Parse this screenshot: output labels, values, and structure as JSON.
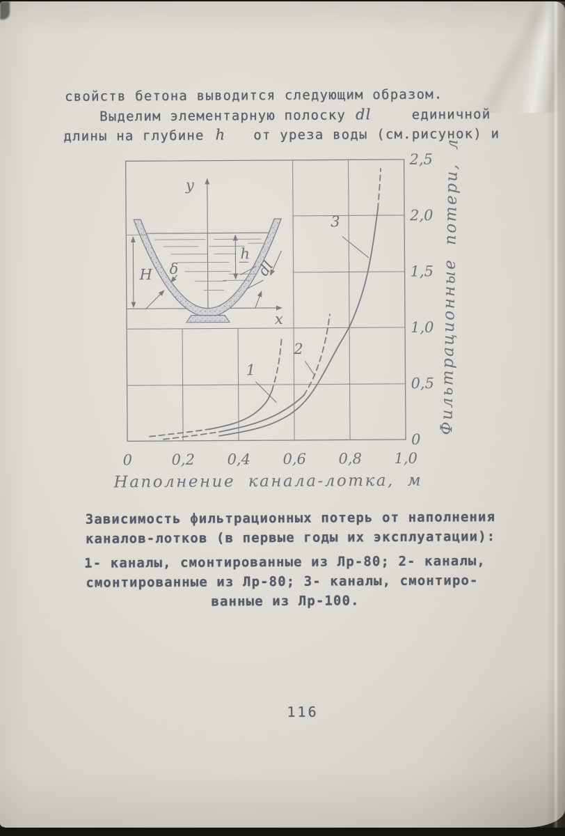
{
  "page_number": "116",
  "body": {
    "line1": "свойств бетона выводится следующим образом.",
    "line2_pre": "Выделим элементарную полоску",
    "line2_math": "dl",
    "line2_post": "единичной",
    "line3_pre": "длины на глубине",
    "line3_math": "h",
    "line3_post": "от уреза воды (см.рисунок) и"
  },
  "caption": {
    "line1": "Зависимость фильтрационных потерь от наполнения",
    "line2": "каналов-лотков (в первые годы их эксплуатации):",
    "line3": "1- каналы, смонтированные из Лр-80; 2- каналы,",
    "line4": "смонтированные из Лр-80; 3- каналы, смонтиро-",
    "line5": "ванные из Лр-100."
  },
  "chart_data": {
    "type": "line",
    "title": "",
    "xlabel": "Наполнение канала-лотка, м",
    "ylabel": "Фильтрационные потери, л/сек/км",
    "xlim": [
      0,
      1.0
    ],
    "ylim": [
      0,
      2.5
    ],
    "grid": true,
    "x_ticks": [
      {
        "value": 0,
        "label": "0"
      },
      {
        "value": 0.2,
        "label": "0,2"
      },
      {
        "value": 0.4,
        "label": "0,4"
      },
      {
        "value": 0.6,
        "label": "0,6"
      },
      {
        "value": 0.8,
        "label": "0,8"
      },
      {
        "value": 1.0,
        "label": "1,0"
      }
    ],
    "y_ticks": [
      {
        "value": 0,
        "label": "0"
      },
      {
        "value": 0.5,
        "label": "0,5"
      },
      {
        "value": 1.0,
        "label": "1,0"
      },
      {
        "value": 1.5,
        "label": "1,5"
      },
      {
        "value": 2.0,
        "label": "2,0"
      },
      {
        "value": 2.5,
        "label": "2,5"
      }
    ],
    "series": [
      {
        "name": "1",
        "label_pos": [
          0.445,
          0.585
        ],
        "leader": [
          [
            0.462,
            0.525
          ],
          [
            0.5375,
            0.335
          ]
        ],
        "segments": [
          {
            "style": "dashed",
            "points": [
              [
                0.08,
                0.04
              ],
              [
                0.15,
                0.06
              ],
              [
                0.22,
                0.078
              ],
              [
                0.3,
                0.105
              ]
            ]
          },
          {
            "style": "solid",
            "points": [
              [
                0.3,
                0.105
              ],
              [
                0.36,
                0.135
              ],
              [
                0.41,
                0.175
              ],
              [
                0.45,
                0.225
              ],
              [
                0.48,
                0.285
              ],
              [
                0.505,
                0.355
              ],
              [
                0.52,
                0.44
              ]
            ]
          },
          {
            "style": "dashed",
            "points": [
              [
                0.52,
                0.44
              ],
              [
                0.535,
                0.56
              ],
              [
                0.548,
                0.72
              ],
              [
                0.557,
                0.92
              ]
            ]
          }
        ]
      },
      {
        "name": "2",
        "label_pos": [
          0.617,
          0.77
        ],
        "leader": [
          [
            0.64,
            0.705
          ],
          [
            0.675,
            0.575
          ]
        ],
        "segments": [
          {
            "style": "dashed",
            "points": [
              [
                0.13,
                0.015
              ],
              [
                0.2,
                0.035
              ],
              [
                0.27,
                0.057
              ],
              [
                0.33,
                0.078
              ]
            ]
          },
          {
            "style": "solid",
            "points": [
              [
                0.33,
                0.078
              ],
              [
                0.4,
                0.112
              ],
              [
                0.46,
                0.152
              ],
              [
                0.52,
                0.208
              ],
              [
                0.57,
                0.275
              ],
              [
                0.61,
                0.345
              ],
              [
                0.635,
                0.4
              ]
            ]
          },
          {
            "style": "dashed",
            "points": [
              [
                0.635,
                0.4
              ],
              [
                0.66,
                0.5
              ],
              [
                0.685,
                0.645
              ],
              [
                0.705,
                0.8
              ],
              [
                0.72,
                0.96
              ],
              [
                0.73,
                1.12
              ]
            ]
          }
        ]
      },
      {
        "name": "3",
        "label_pos": [
          0.752,
          1.905
        ],
        "leader": [
          [
            0.777,
            1.815
          ],
          [
            0.871,
            1.625
          ]
        ],
        "segments": [
          {
            "style": "solid",
            "points": [
              [
                0.33,
                0.042
              ],
              [
                0.42,
                0.078
              ],
              [
                0.5,
                0.128
              ],
              [
                0.56,
                0.192
              ],
              [
                0.61,
                0.272
              ],
              [
                0.65,
                0.375
              ],
              [
                0.685,
                0.5
              ],
              [
                0.72,
                0.655
              ],
              [
                0.76,
                0.84
              ],
              [
                0.8,
                1.0
              ],
              [
                0.835,
                1.21
              ],
              [
                0.862,
                1.43
              ],
              [
                0.882,
                1.67
              ],
              [
                0.896,
                1.9
              ],
              [
                0.905,
                2.06
              ]
            ]
          },
          {
            "style": "dashed",
            "points": [
              [
                0.905,
                2.06
              ],
              [
                0.912,
                2.26
              ],
              [
                0.916,
                2.42
              ]
            ]
          }
        ]
      }
    ],
    "inset": {
      "y_axis_label": "y",
      "x_axis_label": "x",
      "height_label": "H",
      "water_depth_label": "h",
      "wall_thickness_label": "δ",
      "element_label": "dl"
    }
  }
}
